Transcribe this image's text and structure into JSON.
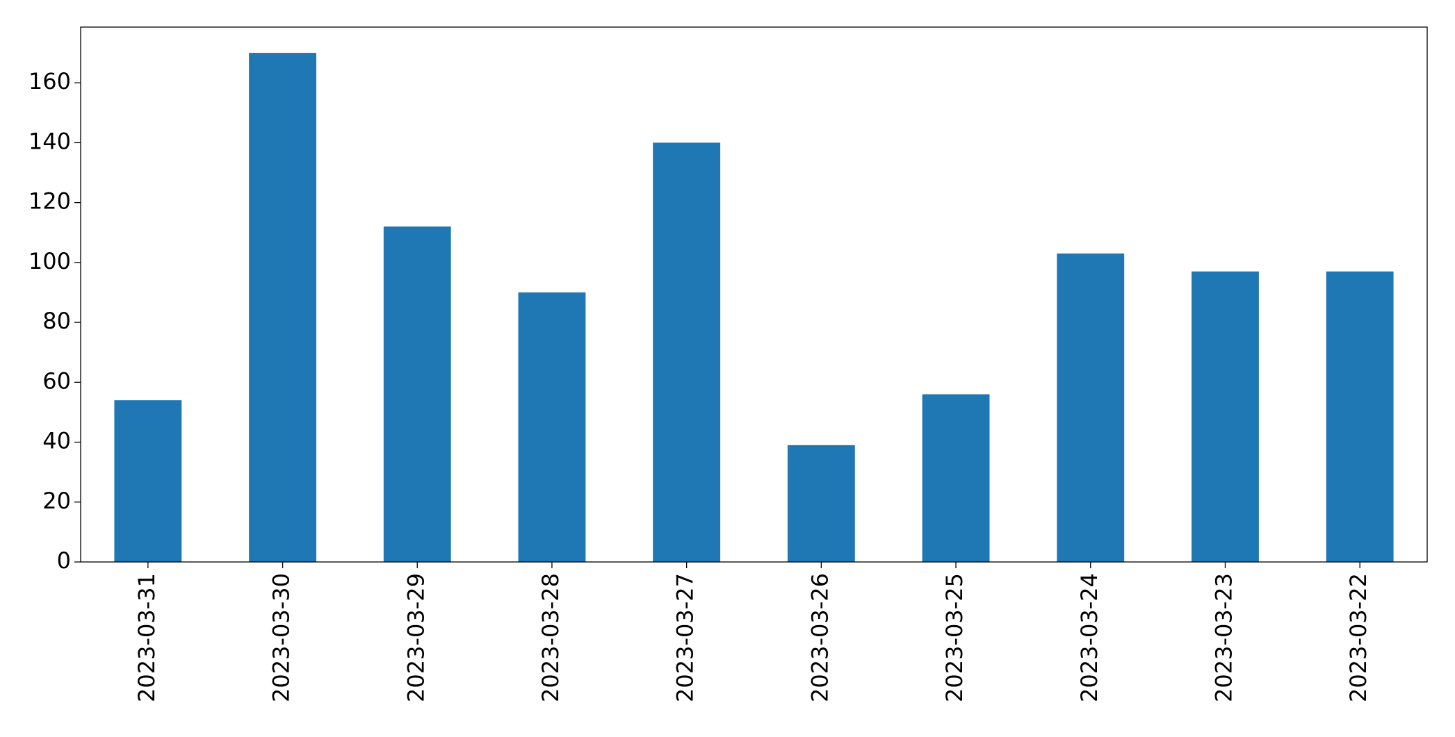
{
  "chart_data": {
    "type": "bar",
    "categories": [
      "2023-03-31",
      "2023-03-30",
      "2023-03-29",
      "2023-03-28",
      "2023-03-27",
      "2023-03-26",
      "2023-03-25",
      "2023-03-24",
      "2023-03-23",
      "2023-03-22"
    ],
    "values": [
      54,
      170,
      112,
      90,
      140,
      39,
      56,
      103,
      97,
      97
    ],
    "color": "#1f77b4",
    "ylim": [
      0,
      178.6
    ],
    "yticks": [
      0,
      20,
      40,
      60,
      80,
      100,
      120,
      140,
      160
    ],
    "grid": false
  }
}
